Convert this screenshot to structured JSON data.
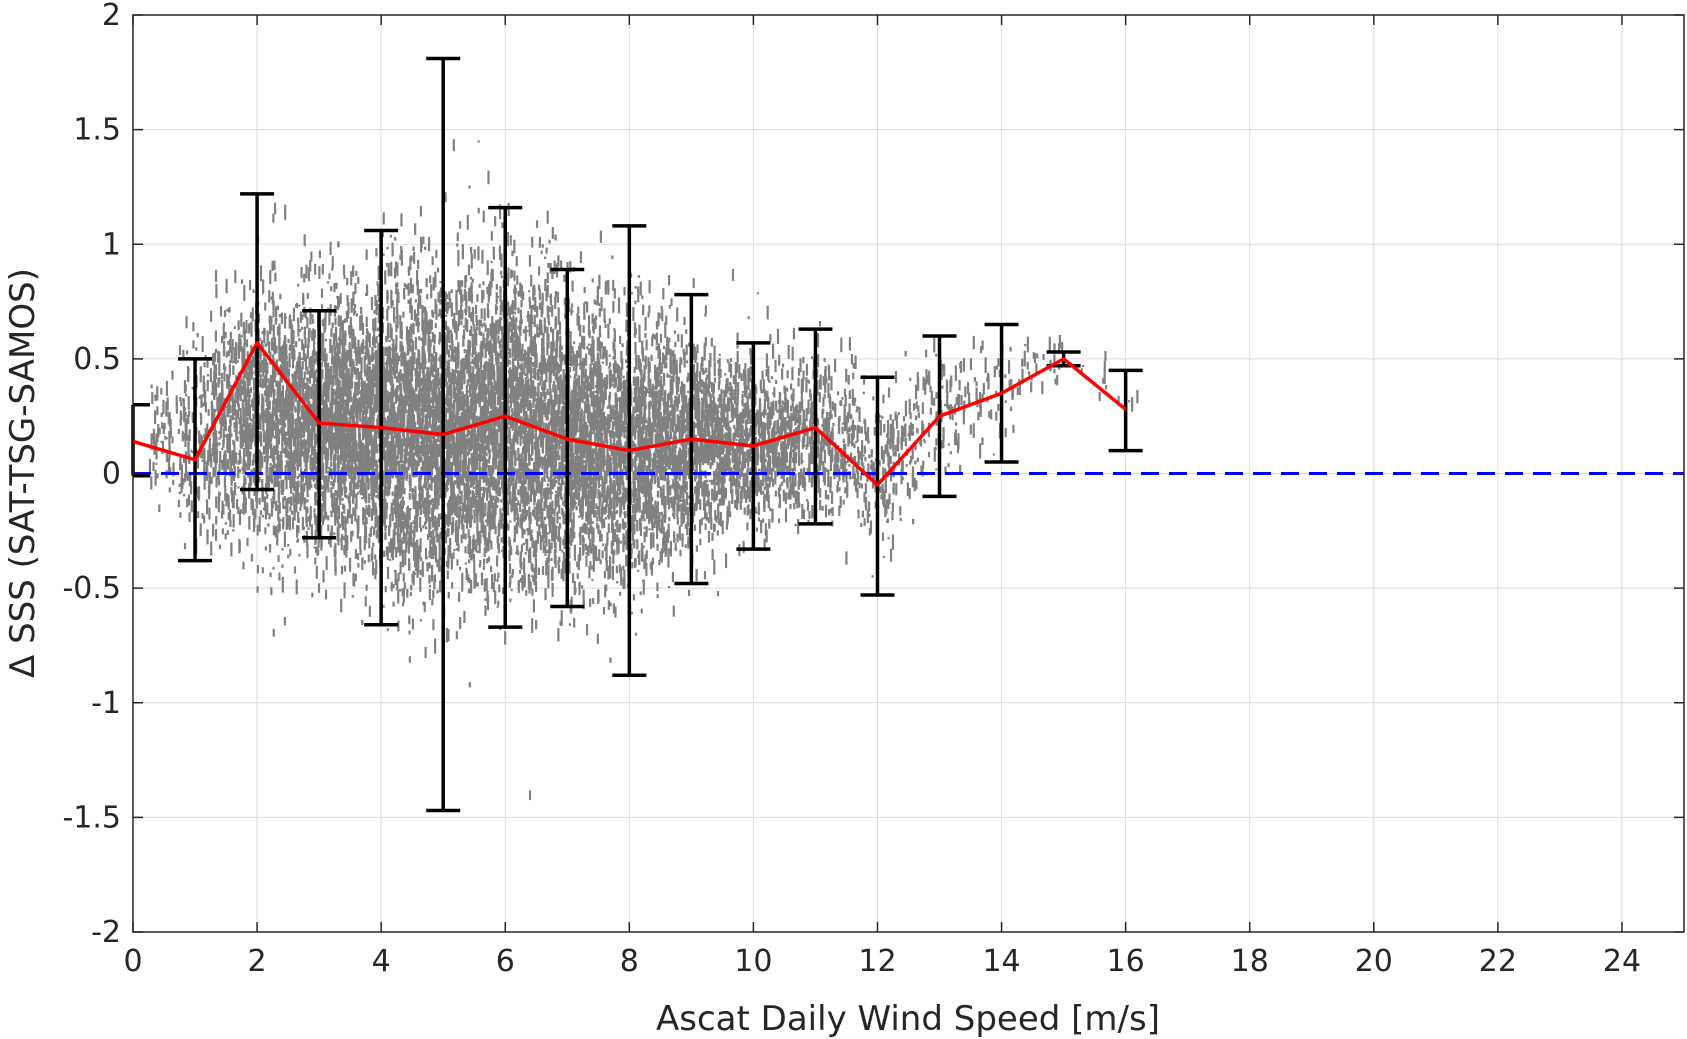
{
  "chart_data": {
    "type": "scatter",
    "xlabel": "Ascat Daily Wind Speed [m/s]",
    "ylabel": "Δ SSS (SAT-TSG-SAMOS)",
    "xlim": [
      0,
      25
    ],
    "ylim": [
      -2,
      2
    ],
    "xticks": [
      0,
      2,
      4,
      6,
      8,
      10,
      12,
      14,
      16,
      18,
      20,
      22,
      24
    ],
    "xtick_labels": [
      "0",
      "2",
      "4",
      "6",
      "8",
      "10",
      "12",
      "14",
      "16",
      "18",
      "20",
      "22",
      "24"
    ],
    "yticks": [
      -2,
      -1.5,
      -1,
      -0.5,
      0,
      0.5,
      1,
      1.5,
      2
    ],
    "ytick_labels": [
      "-2",
      "-1.5",
      "-1",
      "-0.5",
      "0",
      "0.5",
      "1",
      "1.5",
      "2"
    ],
    "grid": true,
    "scatter_color": "#808080",
    "scatter_density": [
      {
        "x": 0.5,
        "mean": 0.18,
        "spread": 0.25,
        "n": 60
      },
      {
        "x": 1.0,
        "mean": 0.15,
        "spread": 0.35,
        "n": 160
      },
      {
        "x": 1.5,
        "mean": 0.2,
        "spread": 0.45,
        "n": 300
      },
      {
        "x": 2.0,
        "mean": 0.25,
        "spread": 0.5,
        "n": 420
      },
      {
        "x": 2.5,
        "mean": 0.22,
        "spread": 0.5,
        "n": 520
      },
      {
        "x": 3.0,
        "mean": 0.2,
        "spread": 0.5,
        "n": 600
      },
      {
        "x": 3.5,
        "mean": 0.2,
        "spread": 0.5,
        "n": 660
      },
      {
        "x": 4.0,
        "mean": 0.2,
        "spread": 0.55,
        "n": 700
      },
      {
        "x": 4.5,
        "mean": 0.18,
        "spread": 0.6,
        "n": 720
      },
      {
        "x": 5.0,
        "mean": 0.17,
        "spread": 0.6,
        "n": 720
      },
      {
        "x": 5.5,
        "mean": 0.2,
        "spread": 0.6,
        "n": 720
      },
      {
        "x": 6.0,
        "mean": 0.22,
        "spread": 0.6,
        "n": 720
      },
      {
        "x": 6.5,
        "mean": 0.18,
        "spread": 0.6,
        "n": 700
      },
      {
        "x": 7.0,
        "mean": 0.15,
        "spread": 0.55,
        "n": 660
      },
      {
        "x": 7.5,
        "mean": 0.12,
        "spread": 0.55,
        "n": 620
      },
      {
        "x": 8.0,
        "mean": 0.1,
        "spread": 0.5,
        "n": 560
      },
      {
        "x": 8.5,
        "mean": 0.12,
        "spread": 0.45,
        "n": 500
      },
      {
        "x": 9.0,
        "mean": 0.14,
        "spread": 0.4,
        "n": 440
      },
      {
        "x": 9.5,
        "mean": 0.13,
        "spread": 0.35,
        "n": 380
      },
      {
        "x": 10.0,
        "mean": 0.12,
        "spread": 0.32,
        "n": 320
      },
      {
        "x": 10.5,
        "mean": 0.15,
        "spread": 0.3,
        "n": 260
      },
      {
        "x": 11.0,
        "mean": 0.18,
        "spread": 0.3,
        "n": 200
      },
      {
        "x": 11.5,
        "mean": 0.1,
        "spread": 0.3,
        "n": 150
      },
      {
        "x": 12.0,
        "mean": 0.0,
        "spread": 0.3,
        "n": 110
      },
      {
        "x": 12.5,
        "mean": 0.12,
        "spread": 0.28,
        "n": 80
      },
      {
        "x": 13.0,
        "mean": 0.25,
        "spread": 0.25,
        "n": 55
      },
      {
        "x": 13.5,
        "mean": 0.3,
        "spread": 0.25,
        "n": 40
      },
      {
        "x": 14.0,
        "mean": 0.35,
        "spread": 0.2,
        "n": 30
      },
      {
        "x": 14.5,
        "mean": 0.45,
        "spread": 0.12,
        "n": 18
      },
      {
        "x": 15.0,
        "mean": 0.48,
        "spread": 0.08,
        "n": 12
      },
      {
        "x": 15.5,
        "mean": 0.45,
        "spread": 0.1,
        "n": 8
      },
      {
        "x": 16.0,
        "mean": 0.3,
        "spread": 0.1,
        "n": 4
      }
    ],
    "series": [
      {
        "type": "line",
        "color": "#ff0000",
        "x": [
          0,
          1,
          2,
          3,
          4,
          5,
          6,
          7,
          8,
          9,
          10,
          11,
          12,
          13,
          14,
          15,
          16
        ],
        "y": [
          0.14,
          0.06,
          0.57,
          0.22,
          0.2,
          0.17,
          0.25,
          0.15,
          0.1,
          0.15,
          0.12,
          0.2,
          -0.05,
          0.25,
          0.35,
          0.5,
          0.28
        ]
      },
      {
        "type": "errorbar",
        "color": "#000000",
        "x": [
          0,
          1,
          2,
          3,
          4,
          5,
          6,
          7,
          8,
          9,
          10,
          11,
          12,
          13,
          14,
          15,
          16
        ],
        "lower": [
          -0.01,
          -0.38,
          -0.07,
          -0.28,
          -0.66,
          -1.47,
          -0.67,
          -0.58,
          -0.88,
          -0.48,
          -0.33,
          -0.22,
          -0.53,
          -0.1,
          0.05,
          0.47,
          0.1
        ],
        "upper": [
          0.3,
          0.5,
          1.22,
          0.71,
          1.06,
          1.81,
          1.16,
          0.89,
          1.08,
          0.78,
          0.57,
          0.63,
          0.42,
          0.6,
          0.65,
          0.53,
          0.45
        ]
      },
      {
        "type": "reference-line",
        "color": "#0000ff",
        "style": "dashed",
        "y": 0
      }
    ]
  }
}
